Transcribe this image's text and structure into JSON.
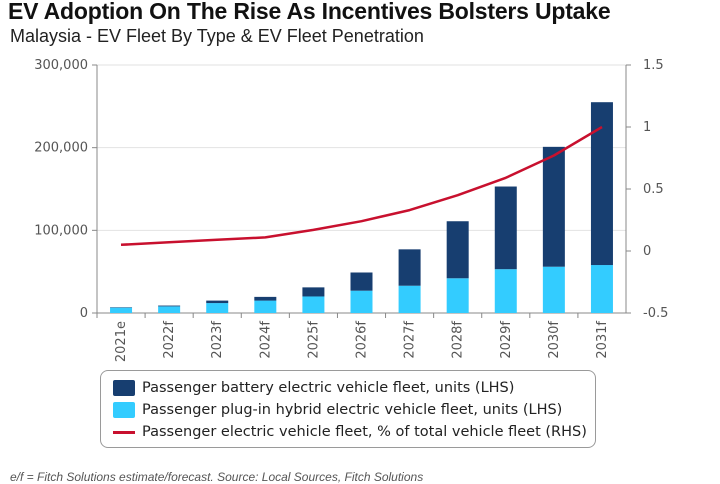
{
  "header": {
    "title": "EV Adoption On The Rise As Incentives Bolsters Uptake",
    "subtitle": "Malaysia - EV Fleet By Type & EV Fleet Penetration"
  },
  "chart_data": {
    "type": "bar",
    "stacked": true,
    "categories": [
      "2021e",
      "2022f",
      "2023f",
      "2024f",
      "2025f",
      "2026f",
      "2027f",
      "2028f",
      "2029f",
      "2030f",
      "2031f"
    ],
    "series": [
      {
        "name": "Passenger battery electric vehicle fleet, units (LHS)",
        "type": "bar",
        "axis": "left",
        "color": "#173e70",
        "values": [
          500,
          1000,
          3000,
          4500,
          11000,
          22000,
          44000,
          69000,
          100000,
          145000,
          197000
        ]
      },
      {
        "name": "Passenger plug-in hybrid electric vehicle fleet, units (LHS)",
        "type": "bar",
        "axis": "left",
        "color": "#33ccff",
        "values": [
          6500,
          8000,
          12000,
          15000,
          20000,
          27000,
          33000,
          42000,
          53000,
          56000,
          58000
        ]
      },
      {
        "name": "Passenger electric vehicle fleet, % of total vehicle fleet (RHS)",
        "type": "line",
        "axis": "right",
        "color": "#c8102e",
        "values": [
          0.05,
          0.07,
          0.09,
          0.11,
          0.17,
          0.24,
          0.33,
          0.45,
          0.59,
          0.77,
          1.0
        ]
      }
    ],
    "y_left": {
      "ticks": [
        "0",
        "100,000",
        "200,000",
        "300,000"
      ],
      "range": [
        0,
        300000
      ]
    },
    "y_right": {
      "ticks": [
        "-0.5",
        "0",
        "0.5",
        "1",
        "1.5"
      ],
      "range": [
        -0.5,
        1.5
      ]
    },
    "grid": true,
    "legend_position": "bottom"
  },
  "footnote": "e/f = Fitch Solutions estimate/forecast. Source: Local Sources, Fitch Solutions"
}
